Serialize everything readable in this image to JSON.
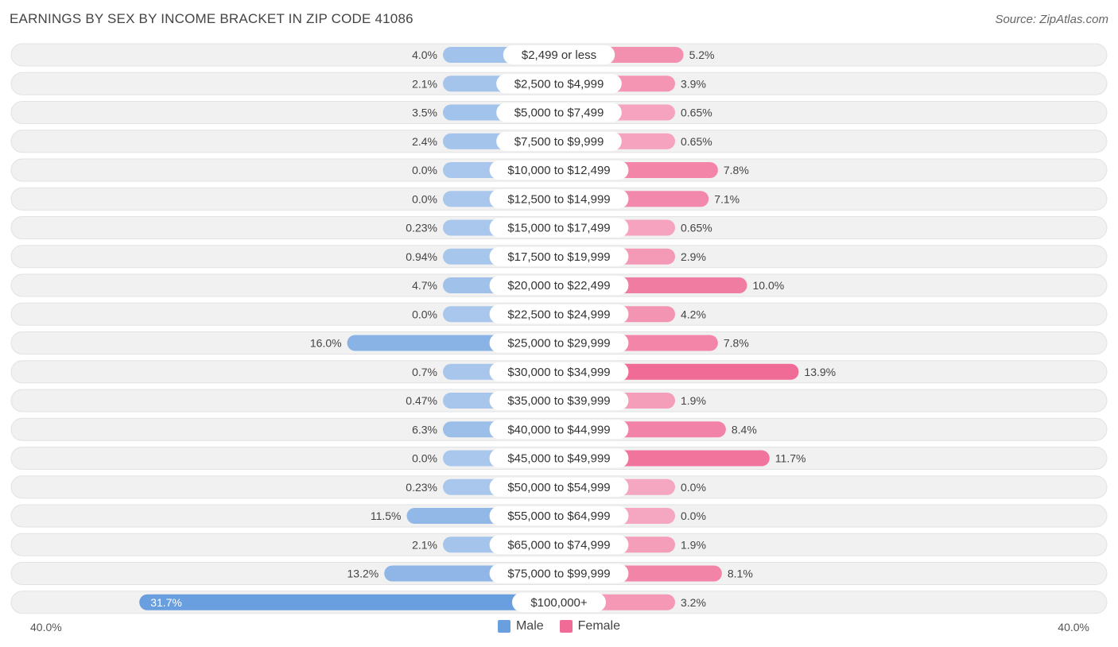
{
  "header": {
    "title": "EARNINGS BY SEX BY INCOME BRACKET IN ZIP CODE 41086",
    "source": "Source: ZipAtlas.com"
  },
  "colors": {
    "male": "#6a9fdf",
    "male_light": "#a9c7ec",
    "female": "#f06b96",
    "female_light": "#f5a6c0",
    "row_bg": "#f1f1f1",
    "row_border": "#e2e2e2"
  },
  "axis": {
    "left_label": "40.0%",
    "right_label": "40.0%"
  },
  "legend": {
    "male": "Male",
    "female": "Female"
  },
  "chart_data": {
    "type": "bar",
    "title": "EARNINGS BY SEX BY INCOME BRACKET IN ZIP CODE 41086",
    "xlim": [
      -40,
      40
    ],
    "categories": [
      "$2,499 or less",
      "$2,500 to $4,999",
      "$5,000 to $7,499",
      "$7,500 to $9,999",
      "$10,000 to $12,499",
      "$12,500 to $14,999",
      "$15,000 to $17,499",
      "$17,500 to $19,999",
      "$20,000 to $22,499",
      "$22,500 to $24,999",
      "$25,000 to $29,999",
      "$30,000 to $34,999",
      "$35,000 to $39,999",
      "$40,000 to $44,999",
      "$45,000 to $49,999",
      "$50,000 to $54,999",
      "$55,000 to $64,999",
      "$65,000 to $74,999",
      "$75,000 to $99,999",
      "$100,000+"
    ],
    "series": [
      {
        "name": "Male",
        "values": [
          4.0,
          2.1,
          3.5,
          2.4,
          0.0,
          0.0,
          0.23,
          0.94,
          4.7,
          0.0,
          16.0,
          0.7,
          0.47,
          6.3,
          0.0,
          0.23,
          11.5,
          2.1,
          13.2,
          31.7
        ],
        "labels": [
          "4.0%",
          "2.1%",
          "3.5%",
          "2.4%",
          "0.0%",
          "0.0%",
          "0.23%",
          "0.94%",
          "4.7%",
          "0.0%",
          "16.0%",
          "0.7%",
          "0.47%",
          "6.3%",
          "0.0%",
          "0.23%",
          "11.5%",
          "2.1%",
          "13.2%",
          "31.7%"
        ]
      },
      {
        "name": "Female",
        "values": [
          5.2,
          3.9,
          0.65,
          0.65,
          7.8,
          7.1,
          0.65,
          2.9,
          10.0,
          4.2,
          7.8,
          13.9,
          1.9,
          8.4,
          11.7,
          0.0,
          0.0,
          1.9,
          8.1,
          3.2
        ],
        "labels": [
          "5.2%",
          "3.9%",
          "0.65%",
          "0.65%",
          "7.8%",
          "7.1%",
          "0.65%",
          "2.9%",
          "10.0%",
          "4.2%",
          "7.8%",
          "13.9%",
          "1.9%",
          "8.4%",
          "11.7%",
          "0.0%",
          "0.0%",
          "1.9%",
          "8.1%",
          "3.2%"
        ]
      }
    ]
  }
}
